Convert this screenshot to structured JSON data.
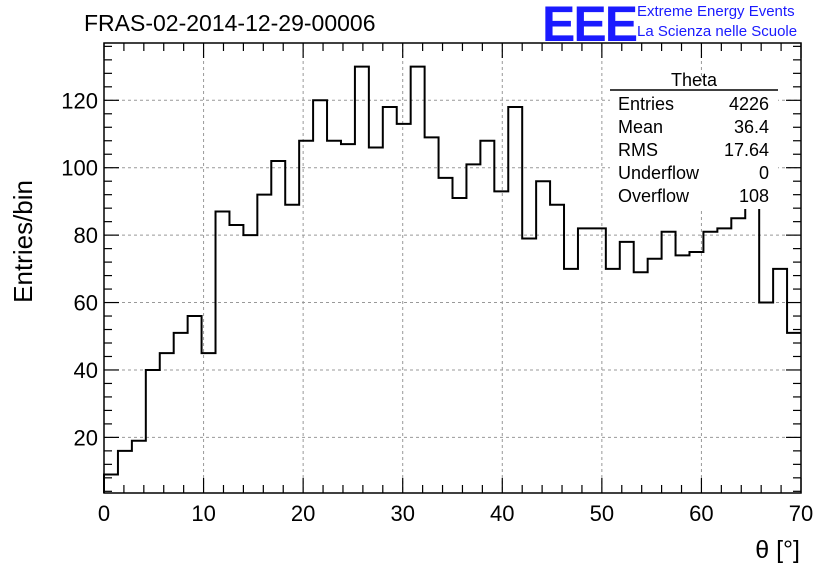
{
  "header": {
    "run_title": "FRAS-02-2014-12-29-00006",
    "logo_text": "EEE",
    "logo_line1": "Extreme Energy Events",
    "logo_line2": "La Scienza nelle Scuole",
    "logo_color": "#1a1aff"
  },
  "stats_box": {
    "title": "Theta",
    "rows": [
      {
        "label": "Entries",
        "value": "4226"
      },
      {
        "label": "Mean",
        "value": "36.4"
      },
      {
        "label": "RMS",
        "value": "17.64"
      },
      {
        "label": "Underflow",
        "value": "0"
      },
      {
        "label": "Overflow",
        "value": "108"
      }
    ]
  },
  "chart_data": {
    "type": "histogram",
    "xlabel": "θ [°]",
    "ylabel": "Entries/bin",
    "xlim": [
      0,
      70
    ],
    "ylim": [
      3.5,
      137
    ],
    "grid": true,
    "x_ticks": [
      0,
      10,
      20,
      30,
      40,
      50,
      60,
      70
    ],
    "y_ticks": [
      20,
      40,
      60,
      80,
      100,
      120
    ],
    "bin_edges": [
      0,
      1.4,
      2.8,
      4.2,
      5.6,
      7,
      8.4,
      9.8,
      11.2,
      12.6,
      14,
      15.4,
      16.8,
      18.2,
      19.6,
      21,
      22.4,
      23.8,
      25.2,
      26.6,
      28,
      29.4,
      30.8,
      32.2,
      33.6,
      35,
      36.4,
      37.8,
      39.2,
      40.6,
      42,
      43.4,
      44.8,
      46.2,
      47.6,
      49,
      50.4,
      51.8,
      53.2,
      54.6,
      56,
      57.4,
      58.8,
      60.2,
      61.6,
      63,
      64.4,
      65.8,
      67.2,
      68.6,
      70
    ],
    "values": [
      9,
      16,
      19,
      40,
      45,
      51,
      56,
      45,
      87,
      83,
      80,
      92,
      102,
      89,
      108,
      120,
      108,
      107,
      130,
      106,
      118,
      113,
      130,
      109,
      97,
      91,
      101,
      108,
      93,
      118,
      79,
      96,
      89,
      70,
      82,
      82,
      70,
      78,
      69,
      73,
      81,
      74,
      75,
      81,
      82,
      85,
      100,
      60,
      70,
      51
    ]
  }
}
